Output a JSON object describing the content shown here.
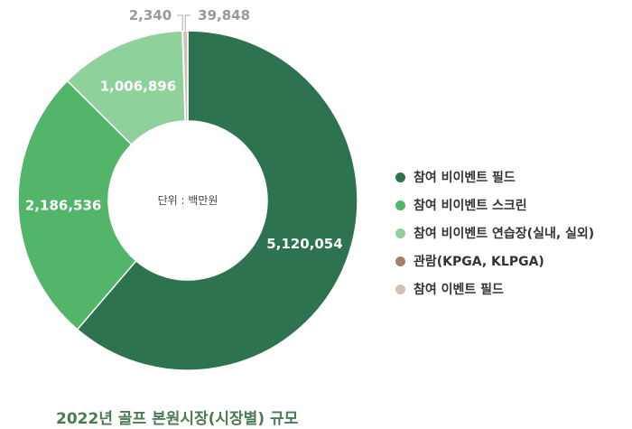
{
  "chart_data": {
    "type": "pie",
    "variant": "donut",
    "center_text": "단위 : 백만원",
    "title": "2022년 골프 본원시장(시장별) 규모",
    "slices": [
      {
        "label": "참여 비이벤트 필드",
        "value": 5120054,
        "display": "5,120,054",
        "color": "#2e7350"
      },
      {
        "label": "참여 비이벤트 스크린",
        "value": 2186536,
        "display": "2,186,536",
        "color": "#52b56a"
      },
      {
        "label": "참여 비이벤트 연습장(실내, 실외)",
        "value": 1006896,
        "display": "1,006,896",
        "color": "#8fd19a"
      },
      {
        "label": "관람(KPGA, KLPGA)",
        "value": 2340,
        "display": "2,340",
        "color": "#a87d6a"
      },
      {
        "label": "참여 이벤트 필드",
        "value": 39848,
        "display": "39,848",
        "color": "#d2bfb6"
      }
    ],
    "legend_position": "right"
  }
}
